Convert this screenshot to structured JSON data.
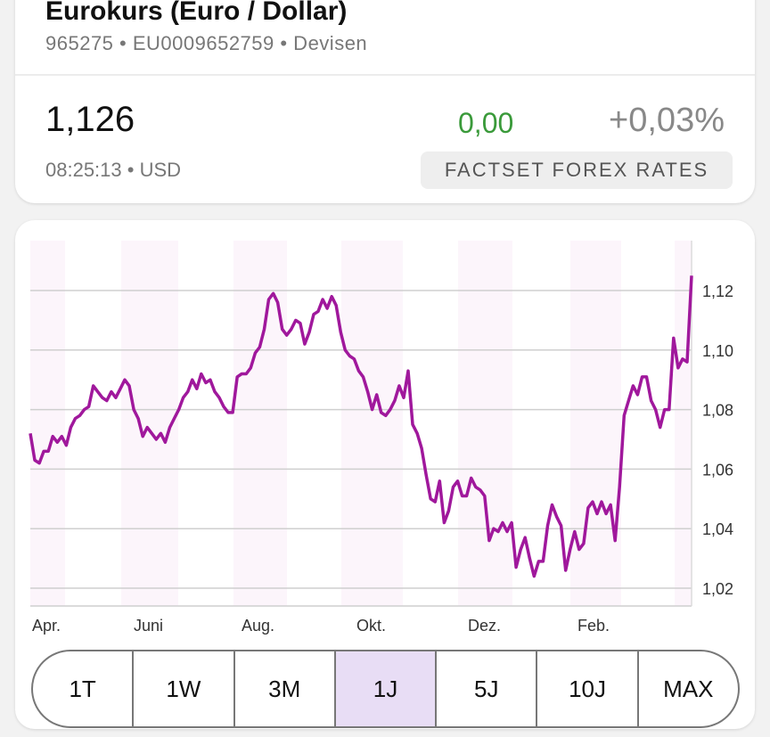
{
  "header": {
    "title": "Eurokurs (Euro / Dollar)",
    "subtitle": "965275 • EU0009652759 • Devisen",
    "price": "1,126",
    "change": "0,00",
    "change_pct": "+0,03%",
    "time_currency": "08:25:13 • USD",
    "source": "FACTSET FOREX RATES",
    "colors": {
      "change": "#3a9a3a"
    }
  },
  "chart_data": {
    "type": "line",
    "xlabel": "",
    "ylabel": "",
    "x_tick_labels": [
      "Apr.",
      "Juni",
      "Aug.",
      "Okt.",
      "Dez.",
      "Feb."
    ],
    "y_tick_labels": [
      "1,02",
      "1,04",
      "1,06",
      "1,08",
      "1,10",
      "1,12"
    ],
    "y_ticks": [
      1.02,
      1.04,
      1.06,
      1.08,
      1.1,
      1.12
    ],
    "ylim": [
      1.014,
      1.136
    ],
    "y_axis_position": "right",
    "grid": true,
    "line_color": "#a0189c",
    "series": [
      {
        "values": [
          1.072,
          1.063,
          1.062,
          1.066,
          1.066,
          1.071,
          1.069,
          1.071,
          1.068,
          1.074,
          1.077,
          1.078,
          1.08,
          1.081,
          1.088,
          1.086,
          1.084,
          1.083,
          1.086,
          1.084,
          1.087,
          1.09,
          1.088,
          1.08,
          1.077,
          1.071,
          1.074,
          1.072,
          1.07,
          1.072,
          1.069,
          1.074,
          1.077,
          1.08,
          1.084,
          1.086,
          1.09,
          1.087,
          1.092,
          1.089,
          1.09,
          1.086,
          1.084,
          1.081,
          1.079,
          1.079,
          1.091,
          1.092,
          1.092,
          1.094,
          1.099,
          1.101,
          1.107,
          1.117,
          1.119,
          1.116,
          1.107,
          1.105,
          1.107,
          1.11,
          1.109,
          1.102,
          1.106,
          1.112,
          1.113,
          1.117,
          1.114,
          1.118,
          1.115,
          1.106,
          1.1,
          1.098,
          1.097,
          1.093,
          1.091,
          1.086,
          1.08,
          1.085,
          1.079,
          1.078,
          1.08,
          1.083,
          1.088,
          1.084,
          1.093,
          1.075,
          1.072,
          1.067,
          1.058,
          1.05,
          1.049,
          1.056,
          1.042,
          1.046,
          1.054,
          1.056,
          1.051,
          1.051,
          1.057,
          1.054,
          1.053,
          1.051,
          1.036,
          1.04,
          1.039,
          1.042,
          1.039,
          1.042,
          1.027,
          1.033,
          1.037,
          1.03,
          1.024,
          1.029,
          1.029,
          1.041,
          1.048,
          1.044,
          1.041,
          1.026,
          1.033,
          1.039,
          1.033,
          1.035,
          1.047,
          1.049,
          1.045,
          1.049,
          1.045,
          1.048,
          1.036,
          1.054,
          1.078,
          1.083,
          1.088,
          1.085,
          1.091,
          1.091,
          1.083,
          1.08,
          1.074,
          1.08,
          1.08,
          1.104,
          1.094,
          1.097,
          1.096,
          1.125
        ]
      }
    ]
  },
  "ranges": [
    {
      "label": "1T",
      "selected": false
    },
    {
      "label": "1W",
      "selected": false
    },
    {
      "label": "3M",
      "selected": false
    },
    {
      "label": "1J",
      "selected": true
    },
    {
      "label": "5J",
      "selected": false
    },
    {
      "label": "10J",
      "selected": false
    },
    {
      "label": "MAX",
      "selected": false
    }
  ]
}
